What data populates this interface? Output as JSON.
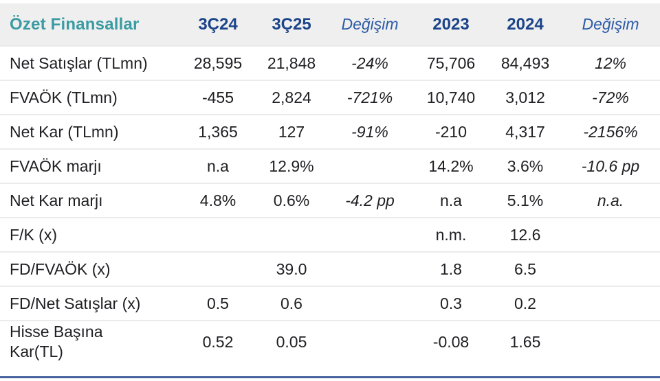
{
  "colors": {
    "header_background": "#efefef",
    "title_teal": "#3a9ba2",
    "year_header_navy": "#1b4489",
    "change_header_blue": "#2d5ba6",
    "body_text": "#202024",
    "row_separator": "#ebebeb",
    "bottom_rule_blue": "#44639e"
  },
  "table": {
    "title": "Özet Finansallar",
    "columns": [
      {
        "label": "3Ç24",
        "emphasis": "strong"
      },
      {
        "label": "3Ç25",
        "emphasis": "strong"
      },
      {
        "label": "Değişim",
        "emphasis": "italic"
      },
      {
        "label": "2023",
        "emphasis": "strong"
      },
      {
        "label": "2024",
        "emphasis": "strong"
      },
      {
        "label": "Değişim",
        "emphasis": "italic"
      }
    ],
    "change_column_indexes": [
      2,
      5
    ],
    "rows": [
      {
        "label": "Net Satışlar (TLmn)",
        "values": [
          "28,595",
          "21,848",
          "-24%",
          "75,706",
          "84,493",
          "12%"
        ]
      },
      {
        "label": "FVAÖK (TLmn)",
        "values": [
          "-455",
          "2,824",
          "-721%",
          "10,740",
          "3,012",
          "-72%"
        ]
      },
      {
        "label": "Net Kar (TLmn)",
        "values": [
          "1,365",
          "127",
          "-91%",
          "-210",
          "4,317",
          "-2156%"
        ]
      },
      {
        "label": "FVAÖK marjı",
        "values": [
          "n.a",
          "12.9%",
          "",
          "14.2%",
          "3.6%",
          "-10.6 pp"
        ]
      },
      {
        "label": "Net Kar marjı",
        "values": [
          "4.8%",
          "0.6%",
          "-4.2 pp",
          "n.a",
          "5.1%",
          "n.a."
        ]
      },
      {
        "label": "F/K (x)",
        "values": [
          "",
          "",
          "",
          "n.m.",
          "12.6",
          ""
        ]
      },
      {
        "label": "FD/FVAÖK (x)",
        "values": [
          "",
          "39.0",
          "",
          "1.8",
          "6.5",
          ""
        ]
      },
      {
        "label": "FD/Net Satışlar (x)",
        "values": [
          "0.5",
          "0.6",
          "",
          "0.3",
          "0.2",
          ""
        ]
      },
      {
        "label": "Hisse Başına\nKar(TL)",
        "values": [
          "0.52",
          "0.05",
          "",
          "-0.08",
          "1.65",
          ""
        ]
      }
    ]
  }
}
